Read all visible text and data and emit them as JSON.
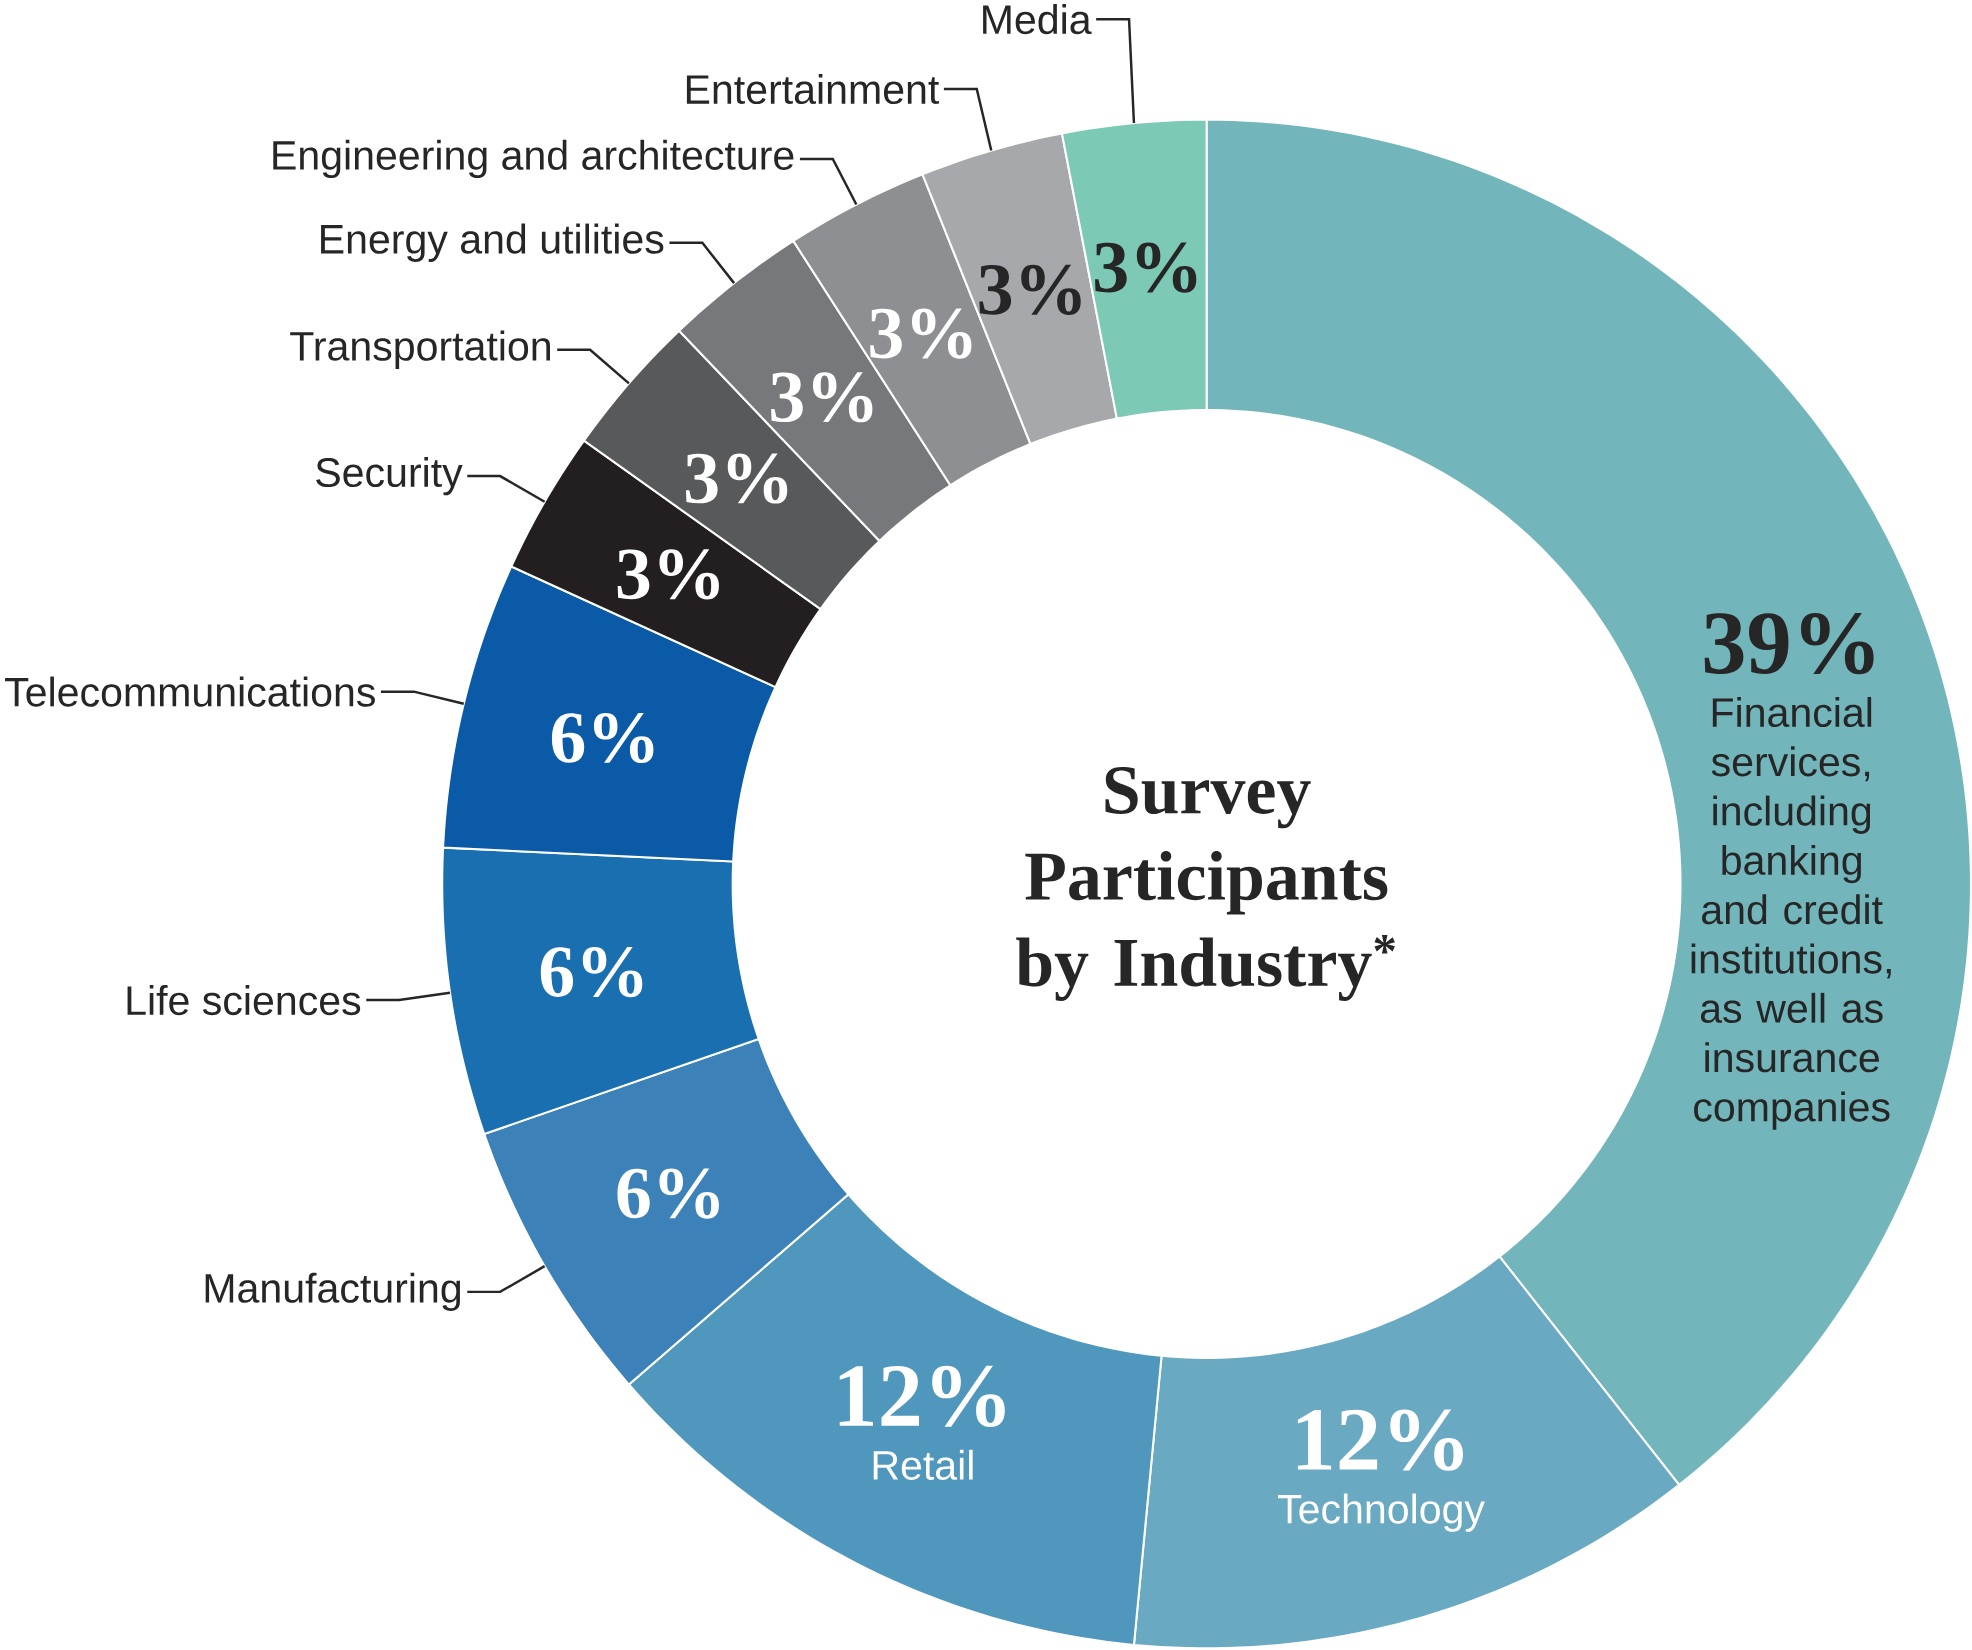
{
  "chart_data": {
    "type": "donut",
    "title": "Survey Participants by Industry$^{*}$",
    "categories": [
      "Financial services, including banking and credit institutions, as well as insurance companies",
      "Technology",
      "Retail",
      "Manufacturing",
      "Life sciences",
      "Telecommunications",
      "Security",
      "Transportation",
      "Energy and utilities",
      "Engineering and architecture",
      "Entertainment",
      "Media"
    ],
    "values": [
      39,
      12,
      12,
      6,
      6,
      6,
      3,
      3,
      3,
      3,
      3,
      3
    ],
    "value_labels": [
      "39%",
      "12%",
      "12%",
      "6%",
      "6%",
      "6%",
      "3%",
      "3%",
      "3%",
      "3%",
      "3%",
      "3%"
    ],
    "colors": [
      "#72b6bb",
      "#6aa9c2",
      "#4f97bd",
      "#3c82b8",
      "#1a6fb0",
      "#0a5aa8",
      "#231f20",
      "#58595b",
      "#77787b",
      "#8e8f92",
      "#a7a8ab",
      "#7ccab5"
    ]
  }
}
